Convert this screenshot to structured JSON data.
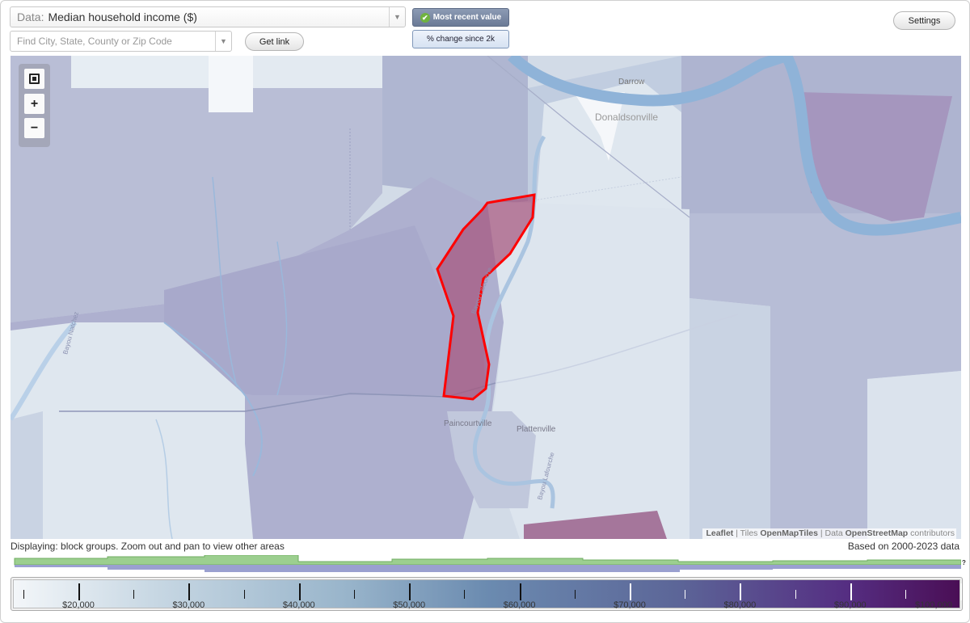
{
  "controls": {
    "data_label": "Data:",
    "data_value": "Median household income ($)",
    "search_placeholder": "Find City, State, County or Zip Code",
    "get_link": "Get link",
    "most_recent": "Most recent value",
    "pct_change": "% change since 2k",
    "settings": "Settings"
  },
  "map": {
    "zoom_in": "+",
    "zoom_out": "−",
    "labels": {
      "darrow": "Darrow",
      "donaldsonville": "Donaldsonville",
      "paincourtville": "Paincourtville",
      "plattenville": "Plattenville",
      "bayou_lafourche_1": "Bayou Lafourche",
      "bayou_lafourche_2": "Bayou Lafourche",
      "bayou_natchez": "Bayou Natchez"
    },
    "attribution": {
      "leaflet": "Leaflet",
      "sep1": " | Tiles ",
      "tiles": "OpenMapTiles",
      "sep2": " | Data ",
      "data": "OpenStreetMap",
      "tail": " contributors"
    },
    "colors": {
      "highlight": "#ff0000",
      "water": "#8fb3d8",
      "highlight_fill": "#a5527a"
    }
  },
  "footer": {
    "displaying": "Displaying: block groups. Zoom out and pan to view other areas",
    "based_on": "Based on 2000-2023 data",
    "help": "?"
  },
  "legend": {
    "labels": [
      "$20,000",
      "$30,000",
      "$40,000",
      "$50,000",
      "$60,000",
      "$70,000",
      "$80,000",
      "$90,000",
      "$100,000"
    ]
  }
}
